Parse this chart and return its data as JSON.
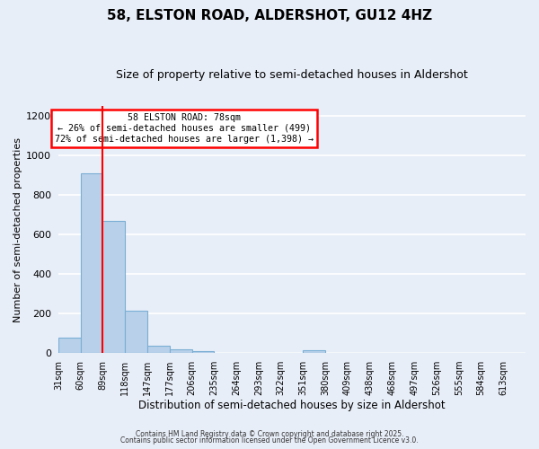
{
  "title1": "58, ELSTON ROAD, ALDERSHOT, GU12 4HZ",
  "title2": "Size of property relative to semi-detached houses in Aldershot",
  "xlabel": "Distribution of semi-detached houses by size in Aldershot",
  "ylabel": "Number of semi-detached properties",
  "bin_labels": [
    "31sqm",
    "60sqm",
    "89sqm",
    "118sqm",
    "147sqm",
    "177sqm",
    "206sqm",
    "235sqm",
    "264sqm",
    "293sqm",
    "322sqm",
    "351sqm",
    "380sqm",
    "409sqm",
    "438sqm",
    "468sqm",
    "497sqm",
    "526sqm",
    "555sqm",
    "584sqm",
    "613sqm"
  ],
  "bar_values": [
    80,
    910,
    670,
    215,
    35,
    20,
    10,
    0,
    0,
    0,
    0,
    15,
    0,
    0,
    0,
    0,
    0,
    0,
    0,
    0,
    0
  ],
  "bar_color": "#b8d0ea",
  "bar_edge_color": "#7aafd4",
  "vline_color": "red",
  "annotation_title": "58 ELSTON ROAD: 78sqm",
  "annotation_line1": "← 26% of semi-detached houses are smaller (499)",
  "annotation_line2": "72% of semi-detached houses are larger (1,398) →",
  "annotation_box_color": "white",
  "annotation_box_edge": "red",
  "ylim": [
    0,
    1250
  ],
  "yticks": [
    0,
    200,
    400,
    600,
    800,
    1000,
    1200
  ],
  "background_color": "#e8eef8",
  "grid_color": "#ffffff",
  "footer1": "Contains HM Land Registry data © Crown copyright and database right 2025.",
  "footer2": "Contains public sector information licensed under the Open Government Licence v3.0."
}
